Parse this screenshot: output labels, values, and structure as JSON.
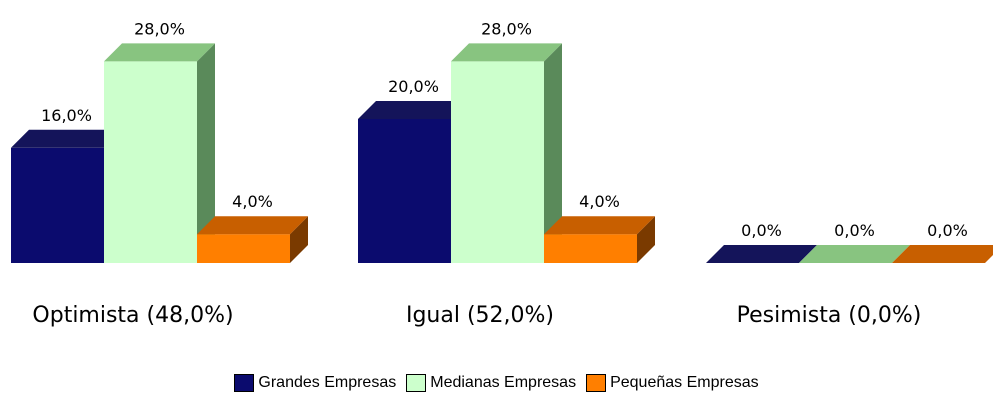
{
  "chart_data": {
    "type": "bar",
    "categories": [
      "Optimista (48,0%)",
      "Igual (52,0%)",
      "Pesimista (0,0%)"
    ],
    "series": [
      {
        "name": "Grandes Empresas",
        "values": [
          16.0,
          20.0,
          0.0
        ],
        "labels": [
          "16,0%",
          "20,0%",
          "0,0%"
        ],
        "color": "#0b0b6e",
        "top": "#14145a",
        "side": "#08084a"
      },
      {
        "name": "Medianas Empresas",
        "values": [
          28.0,
          28.0,
          0.0
        ],
        "labels": [
          "28,0%",
          "28,0%",
          "0,0%"
        ],
        "color": "#ccffcc",
        "top": "#88c480",
        "side": "#5a8a5a"
      },
      {
        "name": "Pequeñas Empresas",
        "values": [
          4.0,
          4.0,
          0.0
        ],
        "labels": [
          "4,0%",
          "4,0%",
          "0,0%"
        ],
        "color": "#ff7f00",
        "top": "#c85f00",
        "side": "#7a3a00"
      }
    ],
    "ylim": [
      0,
      28
    ],
    "grid": false,
    "legend_position": "bottom",
    "bar_style": "3d"
  }
}
